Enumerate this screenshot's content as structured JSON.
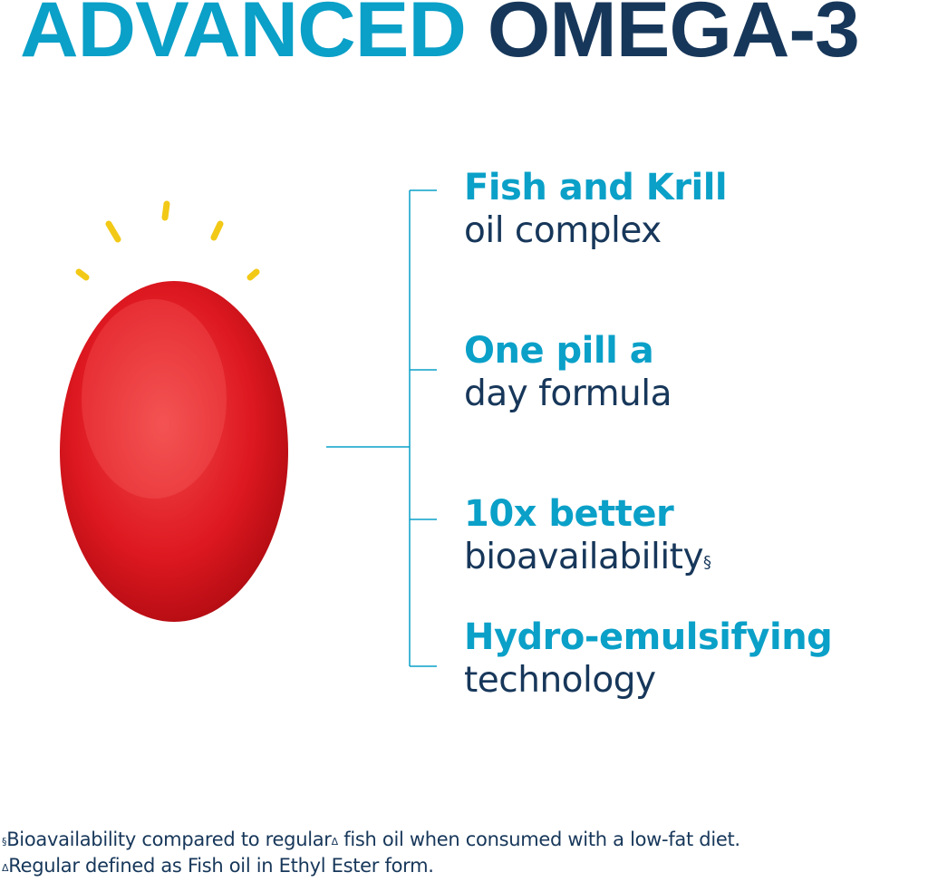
{
  "title": {
    "part1": "ADVANCED",
    "part2": "OMEGA-3"
  },
  "colors": {
    "accent": "#0aa0c8",
    "navy": "#17375a",
    "capsule": "#d8121c",
    "rays": "#f2c916"
  },
  "features": [
    {
      "heading": "Fish and Krill",
      "text": "oil complex",
      "mark": ""
    },
    {
      "heading": "One pill a",
      "text": "day formula",
      "mark": ""
    },
    {
      "heading": "10x better",
      "text": "bioavailability",
      "mark": "§"
    },
    {
      "heading": "Hydro-emulsifying",
      "text": "technology",
      "mark": ""
    }
  ],
  "footnotes": [
    {
      "mark": "§",
      "text_a": "Bioavailability compared to regular",
      "mark2": "Δ",
      "text_b": " fish oil when consumed with a low-fat diet."
    },
    {
      "mark": "Δ",
      "text": "Regular defined as Fish oil in Ethyl Ester form."
    }
  ],
  "image": {
    "icon": "softgel-capsule-icon"
  }
}
